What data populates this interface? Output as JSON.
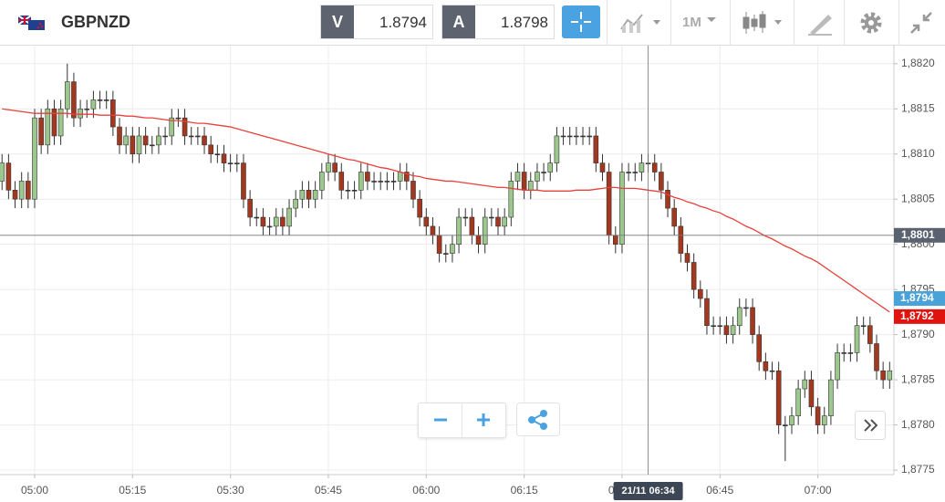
{
  "header": {
    "symbol": "GBPNZD",
    "sell_label": "V",
    "sell": "1.8794",
    "buy_label": "A",
    "buy": "1.8798",
    "timeframe": "1M"
  },
  "chart_data": {
    "type": "candlestick",
    "categories": [
      null,
      null,
      null,
      null,
      null,
      "05:00",
      null,
      null,
      null,
      null,
      null,
      null,
      null,
      null,
      null,
      null,
      null,
      null,
      null,
      null,
      "05:15",
      null,
      null,
      null,
      null,
      null,
      null,
      null,
      null,
      null,
      null,
      null,
      null,
      null,
      null,
      "05:30",
      null,
      null,
      null,
      null,
      null,
      null,
      null,
      null,
      null,
      null,
      null,
      null,
      null,
      null,
      "05:45",
      null,
      null,
      null,
      null,
      null,
      null,
      null,
      null,
      null,
      null,
      null,
      null,
      null,
      null,
      "06:00",
      null,
      null,
      null,
      null,
      null,
      null,
      null,
      null,
      null,
      null,
      null,
      null,
      null,
      null,
      "06:15",
      null,
      null,
      null,
      null,
      null,
      null,
      null,
      null,
      null,
      null,
      null,
      null,
      null,
      null,
      "06:30",
      null,
      null,
      null,
      null,
      null,
      null,
      null,
      null,
      null,
      null,
      null,
      null,
      null,
      null,
      "06:45",
      null,
      null,
      null,
      null,
      null,
      null,
      null,
      null,
      null,
      null,
      null,
      null,
      null,
      null,
      "07:00",
      null,
      null,
      null,
      null,
      null,
      null,
      null,
      null,
      null,
      null,
      null
    ],
    "open": [
      1.8807,
      1.8809,
      1.8806,
      1.8805,
      1.8807,
      1.8805,
      1.8814,
      1.8811,
      1.8815,
      1.8812,
      1.8815,
      1.8818,
      1.8814,
      1.8815,
      1.8815,
      1.8816,
      1.8816,
      1.8816,
      1.8813,
      1.8811,
      1.8812,
      1.881,
      1.8812,
      1.8811,
      1.8811,
      1.8812,
      1.8812,
      1.8814,
      1.8814,
      1.8812,
      1.8812,
      1.8812,
      1.8811,
      1.881,
      1.881,
      1.8809,
      1.8809,
      1.8809,
      1.8805,
      1.8803,
      1.8803,
      1.8802,
      1.8802,
      1.8803,
      1.8802,
      1.8804,
      1.8805,
      1.8806,
      1.8805,
      1.8806,
      1.8808,
      1.8809,
      1.8808,
      1.8806,
      1.8806,
      1.8806,
      1.8808,
      1.8807,
      1.8807,
      1.8807,
      1.8807,
      1.8807,
      1.8808,
      1.8807,
      1.8805,
      1.8803,
      1.8802,
      1.8801,
      1.8799,
      1.8799,
      1.88,
      1.8803,
      1.8803,
      1.8801,
      1.88,
      1.8803,
      1.8803,
      1.8802,
      1.8803,
      1.8807,
      1.8808,
      1.8806,
      1.8807,
      1.8808,
      1.8808,
      1.8809,
      1.8812,
      1.8812,
      1.8812,
      1.8812,
      1.8812,
      1.8812,
      1.8809,
      1.8808,
      1.8801,
      1.88,
      1.8808,
      1.8808,
      1.8808,
      1.8809,
      1.8809,
      1.8808,
      1.8806,
      1.8804,
      1.8802,
      1.8799,
      1.8798,
      1.8795,
      1.8794,
      1.8791,
      1.8791,
      1.8791,
      1.879,
      1.8791,
      1.8793,
      1.8793,
      1.879,
      1.8787,
      1.8786,
      1.8786,
      1.878,
      1.878,
      1.8781,
      1.8784,
      1.8785,
      1.8782,
      1.878,
      1.8781,
      1.8785,
      1.8788,
      1.8788,
      1.8788,
      1.8791,
      1.8791,
      1.8789,
      1.8786,
      1.8785
    ],
    "high": [
      1.881,
      1.881,
      1.8807,
      1.8808,
      1.8808,
      1.8815,
      1.8815,
      1.8816,
      1.8816,
      1.8816,
      1.882,
      1.8819,
      1.8816,
      1.8816,
      1.8817,
      1.8817,
      1.8817,
      1.8817,
      1.8814,
      1.8813,
      1.8813,
      1.8813,
      1.8813,
      1.8812,
      1.8813,
      1.8813,
      1.8815,
      1.8815,
      1.8815,
      1.8813,
      1.8813,
      1.8813,
      1.8812,
      1.8811,
      1.8811,
      1.881,
      1.881,
      1.881,
      1.8806,
      1.8804,
      1.8804,
      1.8803,
      1.8804,
      1.8804,
      1.8805,
      1.8806,
      1.8807,
      1.8807,
      1.8807,
      1.8809,
      1.881,
      1.881,
      1.8809,
      1.8807,
      1.8807,
      1.8809,
      1.8809,
      1.8808,
      1.8808,
      1.8808,
      1.8808,
      1.8809,
      1.8809,
      1.8808,
      1.8806,
      1.8804,
      1.8803,
      1.8802,
      1.88,
      1.8801,
      1.8804,
      1.8804,
      1.8804,
      1.8802,
      1.8804,
      1.8804,
      1.8804,
      1.8804,
      1.8808,
      1.8809,
      1.8809,
      1.8808,
      1.8809,
      1.8809,
      1.881,
      1.8813,
      1.8813,
      1.8813,
      1.8813,
      1.8813,
      1.8813,
      1.8813,
      1.881,
      1.8809,
      1.8802,
      1.8809,
      1.8809,
      1.8809,
      1.881,
      1.881,
      1.881,
      1.8809,
      1.8807,
      1.8805,
      1.8803,
      1.88,
      1.8799,
      1.8796,
      1.8795,
      1.8792,
      1.8792,
      1.8792,
      1.8792,
      1.8794,
      1.8794,
      1.8794,
      1.8791,
      1.8788,
      1.8787,
      1.8787,
      1.8781,
      1.8782,
      1.8785,
      1.8786,
      1.8786,
      1.8783,
      1.8782,
      1.8786,
      1.8789,
      1.8789,
      1.8789,
      1.8792,
      1.8792,
      1.8792,
      1.879,
      1.8787,
      1.8787
    ],
    "low": [
      1.8806,
      1.8805,
      1.8804,
      1.8804,
      1.8804,
      1.8804,
      1.881,
      1.881,
      1.8811,
      1.8811,
      1.8814,
      1.8813,
      1.8813,
      1.8814,
      1.8814,
      1.8815,
      1.8815,
      1.8812,
      1.881,
      1.881,
      1.8809,
      1.8809,
      1.881,
      1.881,
      1.881,
      1.8811,
      1.8811,
      1.8813,
      1.8811,
      1.8811,
      1.8811,
      1.881,
      1.8809,
      1.8809,
      1.8808,
      1.8808,
      1.8808,
      1.8804,
      1.8802,
      1.8802,
      1.8801,
      1.8801,
      1.8801,
      1.8801,
      1.8801,
      1.8803,
      1.8804,
      1.8804,
      1.8804,
      1.8805,
      1.8807,
      1.8807,
      1.8805,
      1.8805,
      1.8805,
      1.8805,
      1.8806,
      1.8806,
      1.8806,
      1.8806,
      1.8806,
      1.8806,
      1.8806,
      1.8804,
      1.8802,
      1.8801,
      1.88,
      1.8798,
      1.8798,
      1.8798,
      1.8799,
      1.8802,
      1.88,
      1.8799,
      1.8799,
      1.8802,
      1.8801,
      1.8801,
      1.8802,
      1.8806,
      1.8805,
      1.8805,
      1.8806,
      1.8807,
      1.8807,
      1.8808,
      1.8811,
      1.8811,
      1.8811,
      1.8811,
      1.8811,
      1.8808,
      1.8807,
      1.88,
      1.8799,
      1.8799,
      1.8807,
      1.8807,
      1.8807,
      1.8808,
      1.8807,
      1.8805,
      1.8803,
      1.8801,
      1.8798,
      1.8797,
      1.8794,
      1.8793,
      1.879,
      1.879,
      1.879,
      1.8789,
      1.8789,
      1.879,
      1.8792,
      1.8789,
      1.8786,
      1.8785,
      1.8785,
      1.8779,
      1.8776,
      1.8779,
      1.878,
      1.8783,
      1.8781,
      1.8779,
      1.8779,
      1.878,
      1.8784,
      1.8787,
      1.8787,
      1.8787,
      1.879,
      1.8788,
      1.8785,
      1.8784,
      1.8784
    ],
    "close": [
      1.8809,
      1.8806,
      1.8805,
      1.8807,
      1.8805,
      1.8814,
      1.8811,
      1.8815,
      1.8812,
      1.8815,
      1.8818,
      1.8814,
      1.8815,
      1.8815,
      1.8816,
      1.8816,
      1.8816,
      1.8813,
      1.8811,
      1.8812,
      1.881,
      1.8812,
      1.8811,
      1.8811,
      1.8812,
      1.8812,
      1.8814,
      1.8814,
      1.8812,
      1.8812,
      1.8812,
      1.8811,
      1.881,
      1.881,
      1.8809,
      1.8809,
      1.8809,
      1.8805,
      1.8803,
      1.8803,
      1.8802,
      1.8802,
      1.8803,
      1.8802,
      1.8804,
      1.8805,
      1.8806,
      1.8805,
      1.8806,
      1.8808,
      1.8809,
      1.8808,
      1.8806,
      1.8806,
      1.8806,
      1.8808,
      1.8807,
      1.8807,
      1.8807,
      1.8807,
      1.8807,
      1.8808,
      1.8807,
      1.8805,
      1.8803,
      1.8802,
      1.8801,
      1.8799,
      1.8799,
      1.88,
      1.8803,
      1.8803,
      1.8801,
      1.88,
      1.8803,
      1.8803,
      1.8802,
      1.8803,
      1.8807,
      1.8808,
      1.8806,
      1.8807,
      1.8808,
      1.8808,
      1.8809,
      1.8812,
      1.8812,
      1.8812,
      1.8812,
      1.8812,
      1.8812,
      1.8809,
      1.8808,
      1.8801,
      1.88,
      1.8808,
      1.8808,
      1.8808,
      1.8809,
      1.8809,
      1.8808,
      1.8806,
      1.8804,
      1.8802,
      1.8799,
      1.8798,
      1.8795,
      1.8794,
      1.8791,
      1.8791,
      1.8791,
      1.879,
      1.8791,
      1.8793,
      1.8793,
      1.879,
      1.8787,
      1.8786,
      1.8786,
      1.878,
      1.878,
      1.8781,
      1.8784,
      1.8785,
      1.8782,
      1.878,
      1.8781,
      1.8785,
      1.8788,
      1.8788,
      1.8788,
      1.8791,
      1.8791,
      1.8789,
      1.8786,
      1.8785,
      1.8786
    ],
    "up_color": "#9dc88d",
    "down_color": "#a3381f",
    "moving_average": {
      "color": "#e8413c",
      "values": [
        1.8815,
        1.88149,
        1.88148,
        1.88147,
        1.88146,
        1.88145,
        1.88145,
        1.88145,
        1.88145,
        1.88145,
        1.88145,
        1.88144,
        1.88144,
        1.88144,
        1.88144,
        1.88143,
        1.88143,
        1.88143,
        1.88143,
        1.88142,
        1.88142,
        1.88141,
        1.8814,
        1.8814,
        1.88139,
        1.88138,
        1.88137,
        1.88137,
        1.88136,
        1.88135,
        1.88134,
        1.88134,
        1.88133,
        1.88132,
        1.88131,
        1.8813,
        1.88128,
        1.88126,
        1.88124,
        1.88122,
        1.8812,
        1.88118,
        1.88116,
        1.88114,
        1.88112,
        1.8811,
        1.88108,
        1.88106,
        1.88104,
        1.88102,
        1.881,
        1.88098,
        1.88096,
        1.88094,
        1.88093,
        1.88091,
        1.88089,
        1.88087,
        1.88085,
        1.88084,
        1.88082,
        1.8808,
        1.88078,
        1.88076,
        1.88075,
        1.88073,
        1.88072,
        1.88071,
        1.8807,
        1.8807,
        1.88069,
        1.88068,
        1.88067,
        1.88066,
        1.88065,
        1.88064,
        1.88063,
        1.88063,
        1.88062,
        1.88061,
        1.8806,
        1.8806,
        1.8806,
        1.88059,
        1.88059,
        1.88059,
        1.88059,
        1.88059,
        1.8806,
        1.8806,
        1.8806,
        1.88061,
        1.88062,
        1.88063,
        1.88063,
        1.88062,
        1.88062,
        1.88062,
        1.88061,
        1.8806,
        1.88059,
        1.88058,
        1.88055,
        1.88052,
        1.8805,
        1.88047,
        1.88045,
        1.88042,
        1.8804,
        1.88037,
        1.88035,
        1.88031,
        1.88028,
        1.88024,
        1.8802,
        1.88017,
        1.88013,
        1.88009,
        1.88006,
        1.88002,
        1.87998,
        1.87995,
        1.87991,
        1.87987,
        1.87984,
        1.8798,
        1.87975,
        1.8797,
        1.87965,
        1.8796,
        1.87955,
        1.8795,
        1.87945,
        1.8794,
        1.87935,
        1.8793,
        1.87925
      ]
    },
    "ylim": [
      1.87745,
      1.8822
    ],
    "yticks": [
      {
        "value": 1.882,
        "label": "1,8820"
      },
      {
        "value": 1.8815,
        "label": "1,8815"
      },
      {
        "value": 1.881,
        "label": "1,8810"
      },
      {
        "value": 1.8805,
        "label": "1,8805"
      },
      {
        "value": 1.88,
        "label": "1,8800"
      },
      {
        "value": 1.8795,
        "label": "1,8795"
      },
      {
        "value": 1.879,
        "label": "1,8790"
      },
      {
        "value": 1.8785,
        "label": "1,8785"
      },
      {
        "value": 1.878,
        "label": "1,8780"
      },
      {
        "value": 1.8775,
        "label": "1,8775"
      }
    ],
    "grid": true,
    "crosshair": {
      "x_label": "21/11 06:34",
      "y": {
        "value": 1.8801,
        "label": "1,8801"
      }
    },
    "price_tags": [
      {
        "value": 1.8794,
        "label": "1,8794",
        "color": "#4aa3d8"
      },
      {
        "value": 1.8792,
        "label": "1,8792",
        "color": "#e0140f"
      }
    ]
  }
}
